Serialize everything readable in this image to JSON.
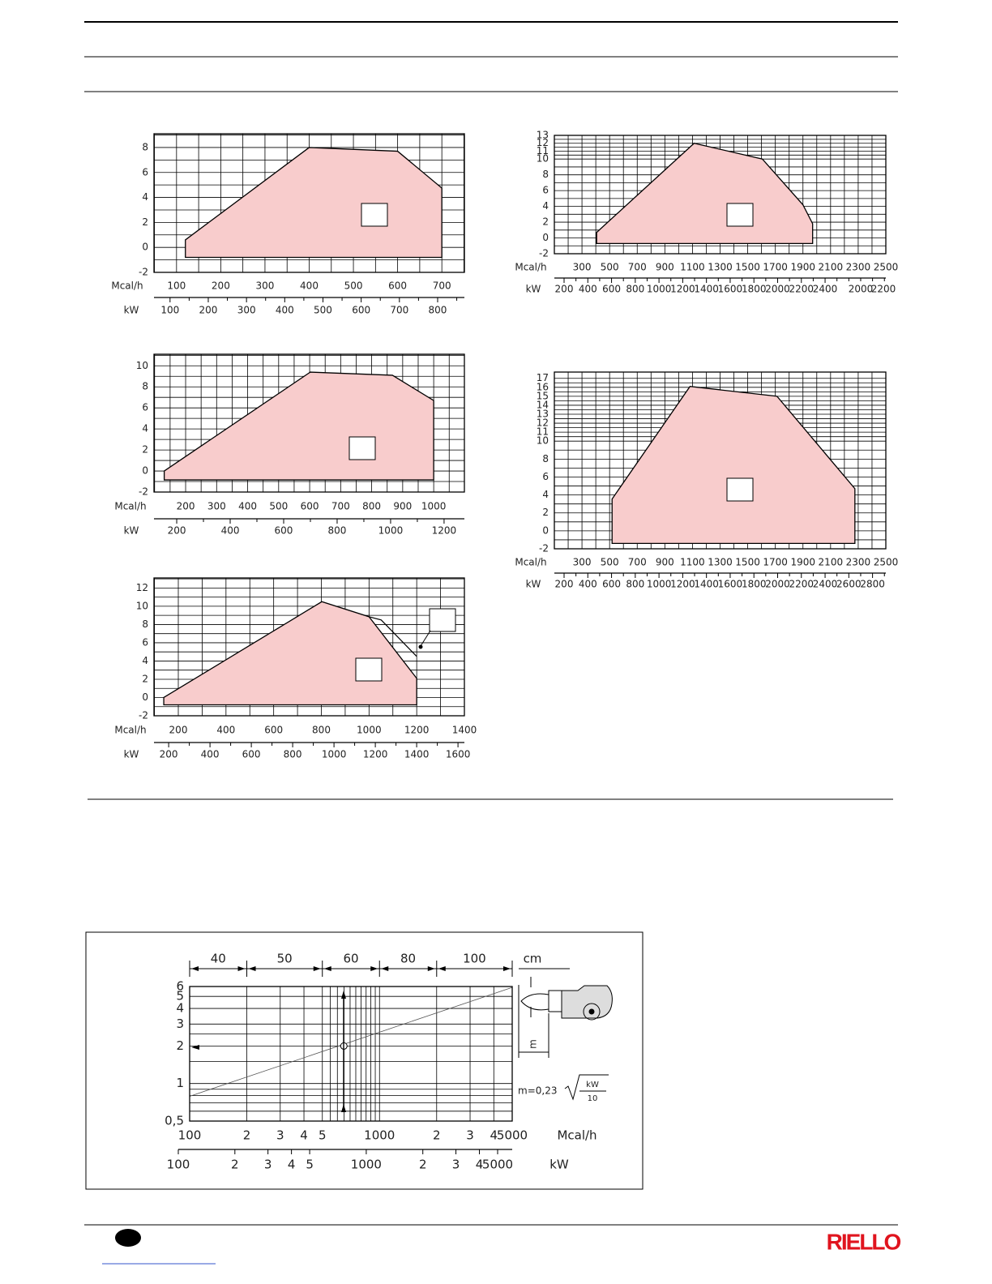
{
  "chart_data": [
    {
      "type": "area",
      "ylim": [
        -2,
        9.1
      ],
      "yticks": [
        -2,
        0,
        2,
        4,
        6,
        8
      ],
      "y_minor": 2,
      "xlim": [
        49,
        751
      ],
      "xticks": [
        100,
        200,
        300,
        400,
        500,
        600,
        700
      ],
      "x_minor": 2,
      "x_label": "Mcal/h",
      "kw_label": "kW",
      "kwlim": [
        58,
        870
      ],
      "kwticks": [
        100,
        200,
        300,
        400,
        500,
        600,
        700,
        800
      ],
      "kw_minor": 2,
      "x": [
        120,
        400,
        600,
        700,
        700,
        120
      ],
      "values": [
        0.6,
        8,
        7.7,
        4.75,
        -0.8,
        -0.8
      ],
      "color": "#f8cccc"
    },
    {
      "type": "area",
      "ylim": [
        -2,
        13
      ],
      "yticks": [
        -2,
        0,
        2,
        4,
        6,
        8,
        10,
        11,
        12,
        13
      ],
      "y_minor": 2,
      "xlim": [
        100,
        2500
      ],
      "xticks": [
        300,
        500,
        700,
        900,
        1100,
        1300,
        1500,
        1700,
        1900,
        2100,
        2300,
        2500
      ],
      "x_minor": 2,
      "x_label": "Mcal/h",
      "kw_label": "kW",
      "kwlim": [
        118,
        2912
      ],
      "kwticks": [
        200,
        400,
        600,
        800,
        1000,
        1200,
        1400,
        1600,
        1800,
        2000,
        2200,
        2400
      ],
      "kw_minor": 2,
      "kw_extra_labels": [
        "2000",
        "2200"
      ],
      "x": [
        406,
        1112,
        1606,
        1900,
        1970,
        1970,
        406
      ],
      "values": [
        0.7,
        12,
        10,
        4.2,
        1.8,
        -0.7,
        -0.7
      ],
      "color": "#f8cccc"
    },
    {
      "type": "area",
      "ylim": [
        -2,
        11.1
      ],
      "yticks": [
        -2,
        0,
        2,
        4,
        6,
        8,
        10
      ],
      "y_minor": 2,
      "xlim": [
        98,
        1099
      ],
      "xticks": [
        200,
        300,
        400,
        500,
        600,
        700,
        800,
        900,
        1000
      ],
      "x_minor": 2,
      "x_label": "Mcal/h",
      "kw_label": "kW",
      "kwlim": [
        115,
        1276
      ],
      "kwticks": [
        200,
        400,
        600,
        800,
        1000,
        1200
      ],
      "kw_minor": 2,
      "x": [
        131,
        602,
        867,
        1000,
        1000,
        131
      ],
      "values": [
        0,
        9.4,
        9.1,
        6.7,
        -0.85,
        -0.85
      ],
      "color": "#f8cccc"
    },
    {
      "type": "area",
      "ylim": [
        -2,
        13.1
      ],
      "yticks": [
        -2,
        0,
        2,
        4,
        6,
        8,
        10,
        12
      ],
      "y_minor": 2,
      "xlim": [
        98,
        1400
      ],
      "xticks": [
        200,
        400,
        600,
        800,
        1000,
        1200,
        1400
      ],
      "x_minor": 2,
      "x_label": "Mcal/h",
      "kw_label": "kW",
      "kwlim": [
        129,
        1631
      ],
      "kwticks": [
        200,
        400,
        600,
        800,
        1000,
        1200,
        1400,
        1600
      ],
      "kw_minor": 2,
      "x": [
        139,
        802,
        1000,
        1200,
        1200,
        139
      ],
      "values": [
        0,
        10.5,
        8.85,
        2.1,
        -0.8,
        -0.8
      ],
      "color": "#f8cccc",
      "alt": {
        "x": [
          1000,
          1051,
          1200
        ],
        "values": [
          8.85,
          8.5,
          4.5
        ]
      }
    },
    {
      "type": "area",
      "ylim": [
        -2,
        17.7
      ],
      "yticks": [
        -2,
        0,
        2,
        4,
        6,
        8,
        10,
        11,
        12,
        13,
        14,
        15,
        16,
        17
      ],
      "y_minor": 2,
      "xlim": [
        100,
        2500
      ],
      "xticks": [
        300,
        500,
        700,
        900,
        1100,
        1300,
        1500,
        1700,
        1900,
        2100,
        2300,
        2500
      ],
      "x_minor": 2,
      "x_label": "Mcal/h",
      "kw_label": "kW",
      "kwlim": [
        118,
        2912
      ],
      "kwticks": [
        200,
        400,
        600,
        800,
        1000,
        1200,
        1400,
        1600,
        1800,
        2000,
        2200,
        2400,
        2600,
        2800
      ],
      "kw_minor": 2,
      "x": [
        518,
        1082,
        1712,
        2276,
        2276,
        518
      ],
      "values": [
        3.55,
        16.1,
        15,
        4.7,
        -1.4,
        -1.4
      ],
      "color": "#f8cccc"
    },
    {
      "type": "line",
      "xlog": true,
      "ylog": true,
      "ylim": [
        0.5,
        6
      ],
      "yticks": [
        {
          "value": 0.5,
          "label": "0,5"
        },
        1,
        2,
        3,
        4,
        5,
        6
      ],
      "yminor": [
        0.6,
        0.7,
        0.8,
        0.9,
        1.5,
        2.5
      ],
      "xlim": [
        100,
        5000
      ],
      "xticks": [
        100,
        {
          "value": 200,
          "label": "2"
        },
        {
          "value": 300,
          "label": "3"
        },
        {
          "value": 400,
          "label": "4"
        },
        {
          "value": 500,
          "label": "5"
        },
        1000,
        {
          "value": 2000,
          "label": "2"
        },
        {
          "value": 3000,
          "label": "3"
        },
        {
          "value": 4000,
          "label": "4"
        },
        5000
      ],
      "xminor": [
        550,
        600,
        650,
        700,
        750,
        800,
        850,
        900,
        950
      ],
      "x_label": "Mcal/h",
      "kw_label": "kW",
      "kwlim": [
        100,
        5000
      ],
      "kwticks": [
        100,
        {
          "value": 200,
          "label": "2"
        },
        {
          "value": 300,
          "label": "3"
        },
        {
          "value": 400,
          "label": "4"
        },
        {
          "value": 500,
          "label": "5"
        },
        1000,
        {
          "value": 2000,
          "label": "2"
        },
        {
          "value": 3000,
          "label": "3"
        },
        {
          "value": 4000,
          "label": "4"
        },
        5000
      ],
      "bands": {
        "edges": [
          100,
          200,
          500,
          1000,
          2000,
          5000
        ],
        "labels": [
          "40",
          "50",
          "60",
          "80",
          "100"
        ],
        "unit": "cm"
      },
      "x": [
        100,
        5000
      ],
      "values": [
        0.79,
        5.9
      ],
      "color": "#555",
      "point": {
        "x": 649,
        "y": 2
      },
      "dimension_label": "m",
      "formula": {
        "lead": "m=0,23",
        "numerator": "kW",
        "denominator": "10"
      }
    }
  ],
  "footer": {
    "logo": "RIELLO"
  }
}
